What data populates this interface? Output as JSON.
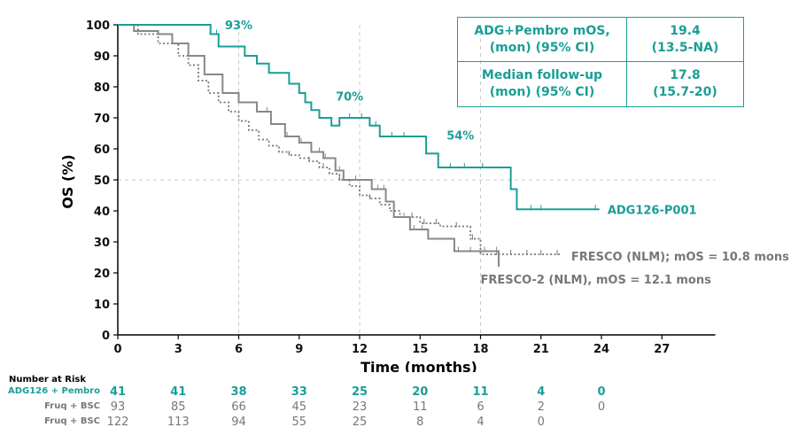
{
  "chart_data": {
    "type": "line",
    "subtype": "kaplan-meier",
    "xlabel": "Time (months)",
    "ylabel": "OS (%)",
    "xlim": [
      0,
      30
    ],
    "ylim": [
      0,
      100
    ],
    "xticks": [
      0,
      3,
      6,
      9,
      12,
      15,
      18,
      21,
      24,
      27
    ],
    "yticks": [
      0,
      10,
      20,
      30,
      40,
      50,
      60,
      70,
      80,
      90,
      100
    ],
    "reference_lines": {
      "x": [
        6,
        12,
        18
      ],
      "y": [
        50
      ]
    },
    "series": [
      {
        "name": "ADG126-P001",
        "color": "#1a9e96",
        "style": "solid",
        "x": [
          0,
          4.4,
          4.6,
          5.0,
          6.3,
          6.9,
          7.5,
          8.5,
          9.0,
          9.3,
          9.6,
          10.0,
          10.6,
          11.0,
          12.5,
          13.0,
          14.4,
          15.3,
          15.9,
          19.5,
          19.8,
          23.9
        ],
        "y": [
          100,
          100,
          97,
          93,
          90,
          87.5,
          84.5,
          81,
          78,
          75,
          72.5,
          70,
          67.5,
          70,
          67.5,
          64,
          64,
          58.5,
          54,
          47,
          40.5,
          40.5
        ],
        "censor_times": [
          4.9,
          11.5,
          12.1,
          12.8,
          13.6,
          14.2,
          16.5,
          17.2,
          18.1,
          20.5,
          21.0,
          23.7
        ]
      },
      {
        "name": "FRESCO (NLM)",
        "color": "#777777",
        "style": "dotted",
        "x": [
          0,
          1.0,
          2.0,
          3.0,
          3.5,
          4.0,
          4.5,
          5.0,
          5.5,
          6.0,
          6.5,
          7.0,
          7.5,
          8.0,
          8.5,
          9.0,
          9.5,
          10.0,
          10.5,
          11.0,
          11.5,
          12.0,
          12.5,
          13.0,
          13.5,
          14.0,
          15.0,
          16.0,
          17.0,
          17.5,
          18.0,
          18.5,
          22.0
        ],
        "y": [
          100,
          97,
          94,
          90,
          87,
          82,
          78,
          75,
          72,
          69,
          66,
          63,
          61,
          59,
          58,
          57,
          56,
          54,
          52,
          50,
          48,
          45,
          44,
          42,
          40,
          38,
          36,
          35,
          35,
          31,
          26,
          26,
          26
        ],
        "censor_times": [
          8.5,
          9.5,
          10.2,
          11.0,
          12.5,
          14.6,
          15.2,
          15.8,
          16.8,
          17.6,
          18.8,
          19.5,
          20.3,
          21.0,
          21.8
        ]
      },
      {
        "name": "FRESCO-2 (NLM)",
        "color": "#888888",
        "style": "solid",
        "x": [
          0,
          0.8,
          2.0,
          2.7,
          3.5,
          4.3,
          5.2,
          6.0,
          6.9,
          7.6,
          8.3,
          9.0,
          9.6,
          10.2,
          10.8,
          11.2,
          12.0,
          12.6,
          13.3,
          13.7,
          14.5,
          15.4,
          16.7,
          18.9
        ],
        "y": [
          100,
          98,
          97,
          94,
          90,
          84,
          78,
          75,
          72,
          68,
          64,
          62,
          59,
          57,
          53,
          50,
          50,
          47,
          43,
          38,
          34,
          31,
          27,
          22
        ],
        "censor_times": [
          7.4,
          8.4,
          9.1,
          9.6,
          10.0,
          10.3,
          11.0,
          11.8,
          12.9,
          13.2,
          14.2,
          14.7,
          15.1,
          16.9,
          17.5,
          18.2,
          18.8
        ]
      }
    ],
    "annotations": [
      {
        "x": 6,
        "y": 100,
        "text": "93%"
      },
      {
        "x": 11.5,
        "y": 77,
        "text": "70%"
      },
      {
        "x": 17.0,
        "y": 64.5,
        "text": "54%"
      }
    ],
    "series_labels": [
      {
        "series": "ADG126-P001",
        "text": "ADG126-P001"
      },
      {
        "series": "FRESCO (NLM)",
        "text": "FRESCO (NLM); mOS = 10.8 mons"
      },
      {
        "series": "FRESCO-2 (NLM)",
        "text": "FRESCO-2 (NLM), mOS = 12.1 mons"
      }
    ]
  },
  "stats_table": {
    "rows": [
      {
        "label": "ADG+Pembro mOS,\n(mon) (95% CI)",
        "value": "19.4\n(13.5-NA)"
      },
      {
        "label": "Median follow-up\n(mon) (95% CI)",
        "value": "17.8\n(15.7-20)"
      }
    ]
  },
  "risk_table": {
    "title": "Number at Risk",
    "times": [
      0,
      3,
      6,
      9,
      12,
      15,
      18,
      21,
      24
    ],
    "rows": [
      {
        "label": "ADG126 + Pembro",
        "color": "teal",
        "values": [
          "41",
          "41",
          "38",
          "33",
          "25",
          "20",
          "11",
          "4",
          "0"
        ]
      },
      {
        "label": "Fruq + BSC",
        "color": "grey",
        "values": [
          "93",
          "85",
          "66",
          "45",
          "23",
          "11",
          "6",
          "2",
          "0"
        ]
      },
      {
        "label": "Fruq + BSC",
        "color": "grey",
        "values": [
          "122",
          "113",
          "94",
          "55",
          "25",
          "8",
          "4",
          "0"
        ]
      }
    ]
  }
}
